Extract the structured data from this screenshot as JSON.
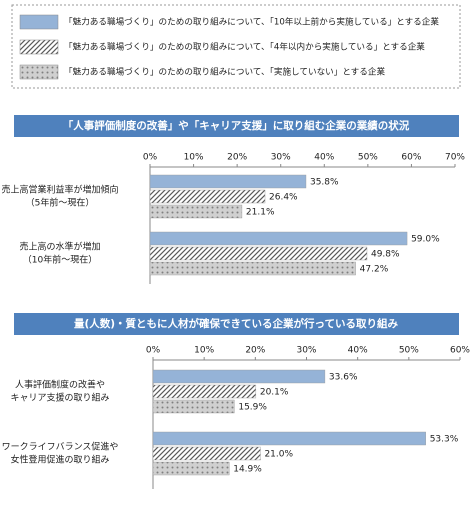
{
  "chart_data": [
    {
      "type": "bar",
      "orientation": "horizontal",
      "title": "「人事評価制度の改善」や「キャリア支援」に取り組む企業の業績の状況",
      "categories": [
        [
          "売上高営業利益率が増加傾向",
          "（5年前～現在）"
        ],
        [
          "売上高の水準が増加",
          "（10年前～現在）"
        ]
      ],
      "series": [
        {
          "name": "「魅力ある職場づくり」のための取り組みについて、「10年以上前から実施している」とする企業",
          "color": "#95b3d7",
          "pattern": "solid",
          "values": [
            35.8,
            59.0
          ],
          "value_labels": [
            "35.8%",
            "59.0%"
          ]
        },
        {
          "name": "「魅力ある職場づくり」のための取り組みについて、「4年以内から実施している」とする企業",
          "color": "#595959",
          "pattern": "hatch",
          "values": [
            26.4,
            49.8
          ],
          "value_labels": [
            "26.4%",
            "49.8%"
          ]
        },
        {
          "name": "「魅力ある職場づくり」のための取り組みについて、「実施していない」とする企業",
          "color": "#7f7f7f",
          "pattern": "dots",
          "values": [
            21.1,
            47.2
          ],
          "value_labels": [
            "21.1%",
            "47.2%"
          ]
        }
      ],
      "xlim": [
        0,
        70
      ],
      "xticks": [
        {
          "value": 0,
          "label": "0%"
        },
        {
          "value": 10,
          "label": "10%"
        },
        {
          "value": 20,
          "label": "20%"
        },
        {
          "value": 30,
          "label": "30%"
        },
        {
          "value": 40,
          "label": "40%"
        },
        {
          "value": 50,
          "label": "50%"
        },
        {
          "value": 60,
          "label": "60%"
        },
        {
          "value": 70,
          "label": "70%"
        }
      ]
    },
    {
      "type": "bar",
      "orientation": "horizontal",
      "title": "量(人数)・質ともに人材が確保できている企業が行っている取り組み",
      "categories": [
        [
          "人事評価制度の改善や",
          "キャリア支援の取り組み"
        ],
        [
          "ワークライフバランス促進や",
          "女性登用促進の取り組み"
        ]
      ],
      "series": [
        {
          "color": "#95b3d7",
          "pattern": "solid",
          "values": [
            33.6,
            53.3
          ],
          "value_labels": [
            "33.6%",
            "53.3%"
          ]
        },
        {
          "color": "#595959",
          "pattern": "hatch",
          "values": [
            20.1,
            21.0
          ],
          "value_labels": [
            "20.1%",
            "21.0%"
          ]
        },
        {
          "color": "#7f7f7f",
          "pattern": "dots",
          "values": [
            15.9,
            14.9
          ],
          "value_labels": [
            "15.9%",
            "14.9%"
          ]
        }
      ],
      "xlim": [
        0,
        60
      ],
      "xticks": [
        {
          "value": 0,
          "label": "0%"
        },
        {
          "value": 10,
          "label": "10%"
        },
        {
          "value": 20,
          "label": "20%"
        },
        {
          "value": 30,
          "label": "30%"
        },
        {
          "value": 40,
          "label": "40%"
        },
        {
          "value": 50,
          "label": "50%"
        },
        {
          "value": 60,
          "label": "60%"
        }
      ]
    }
  ]
}
